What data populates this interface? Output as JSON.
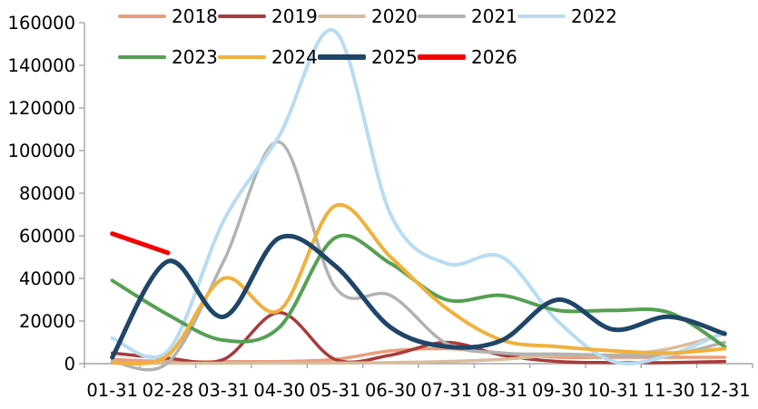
{
  "chart_data": {
    "type": "line",
    "title": "",
    "smooth": true,
    "grid": false,
    "legend_position": "top",
    "axis_color": "#A6A6A6",
    "text_color": "#000000",
    "x_categories": [
      "01-31",
      "02-28",
      "03-31",
      "04-30",
      "05-31",
      "06-30",
      "07-31",
      "08-31",
      "09-30",
      "10-31",
      "11-30",
      "12-31"
    ],
    "y_axis": {
      "min": 0,
      "max": 160000,
      "step": 20000
    },
    "y_ticks": [
      0,
      20000,
      40000,
      60000,
      80000,
      100000,
      120000,
      140000,
      160000
    ],
    "series": [
      {
        "name": "2018",
        "color": "#EB9C7D",
        "width": 3.5,
        "values": [
          2000,
          1000,
          1000,
          1000,
          2000,
          6000,
          7000,
          5000,
          3000,
          3000,
          3000,
          3000
        ]
      },
      {
        "name": "2019",
        "color": "#A83B3B",
        "width": 3.5,
        "values": [
          5000,
          2500,
          2000,
          24000,
          2000,
          4000,
          10000,
          4000,
          1000,
          500,
          500,
          1000
        ]
      },
      {
        "name": "2020",
        "color": "#D9BC9B",
        "width": 3.5,
        "values": [
          200,
          200,
          200,
          300,
          300,
          500,
          1000,
          2000,
          4000,
          4000,
          7000,
          14000
        ]
      },
      {
        "name": "2021",
        "color": "#B2B2B2",
        "width": 3.5,
        "values": [
          1000,
          500,
          48000,
          104000,
          36000,
          32000,
          9500,
          5000,
          4500,
          4000,
          4000,
          10000
        ]
      },
      {
        "name": "2022",
        "color": "#B8DCF2",
        "width": 4,
        "values": [
          12000,
          6000,
          67000,
          107000,
          156000,
          70000,
          47000,
          50000,
          20000,
          1000,
          4000,
          15000
        ]
      },
      {
        "name": "2023",
        "color": "#55A052",
        "width": 4,
        "values": [
          39000,
          23000,
          11000,
          17000,
          59000,
          47000,
          30000,
          32000,
          25000,
          25000,
          24000,
          8000
        ]
      },
      {
        "name": "2024",
        "color": "#F0B13C",
        "width": 4,
        "values": [
          500,
          4000,
          40000,
          25000,
          74000,
          50000,
          26000,
          11000,
          8000,
          6000,
          5000,
          7000
        ]
      },
      {
        "name": "2025",
        "color": "#1F4568",
        "width": 5,
        "values": [
          3000,
          48000,
          22000,
          59000,
          46000,
          17000,
          8000,
          11000,
          30000,
          16000,
          22000,
          14000
        ]
      },
      {
        "name": "2026",
        "color": "#F50000",
        "width": 5,
        "values": [
          61000,
          52000,
          null,
          null,
          null,
          null,
          null,
          null,
          null,
          null,
          null,
          null
        ]
      }
    ],
    "legend_rows": [
      [
        0,
        1,
        2,
        3,
        4
      ],
      [
        5,
        6,
        7,
        8
      ]
    ]
  }
}
